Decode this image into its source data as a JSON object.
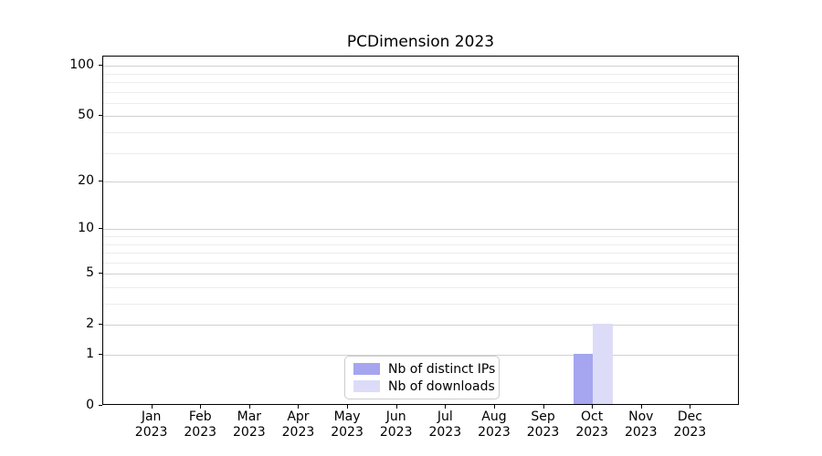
{
  "figure": {
    "background": "#ffffff"
  },
  "chart_data": {
    "type": "bar",
    "title": "PCDimension 2023",
    "categories": [
      "Jan",
      "Feb",
      "Mar",
      "Apr",
      "May",
      "Jun",
      "Jul",
      "Aug",
      "Sep",
      "Oct",
      "Nov",
      "Dec"
    ],
    "category_year": "2023",
    "series": [
      {
        "name": "Nb of distinct IPs",
        "color": "#a5a5f0",
        "values": [
          0,
          0,
          0,
          0,
          0,
          0,
          0,
          0,
          0,
          1,
          0,
          0
        ]
      },
      {
        "name": "Nb of downloads",
        "color": "#dcdcf8",
        "values": [
          0,
          0,
          0,
          0,
          0,
          0,
          0,
          0,
          0,
          2,
          0,
          0
        ]
      }
    ],
    "xlabel": "",
    "ylabel": "",
    "yscale": "log1p",
    "ylim": [
      0,
      113
    ],
    "yticks": [
      0,
      1,
      2,
      5,
      10,
      20,
      50,
      100
    ],
    "minor_gridlines": [
      3,
      4,
      6,
      7,
      8,
      9,
      30,
      40,
      60,
      70,
      80,
      90
    ],
    "grid": true,
    "legend_position": "lower center",
    "colors": {
      "spine": "#000000",
      "grid_major": "#d0d0d0",
      "grid_minor": "#ececec"
    }
  }
}
